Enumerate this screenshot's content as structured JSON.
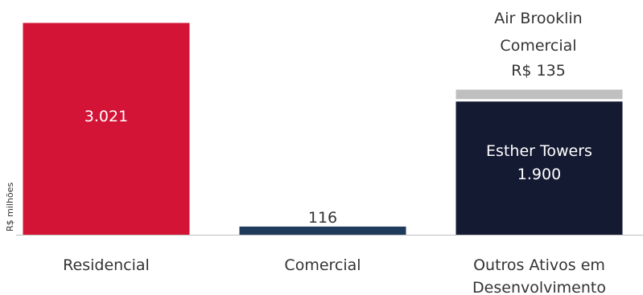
{
  "chart_data": {
    "type": "bar",
    "stacked": true,
    "ylabel": "R$ milhões",
    "categories": [
      "Residencial",
      "Comercial",
      "Outros Ativos em Desenvolvimento"
    ],
    "series": [
      {
        "name": "",
        "values": [
          3021,
          116,
          1900
        ],
        "colors": [
          "#d31437",
          "#1f3a5a",
          "#151a33"
        ]
      },
      {
        "name": "",
        "values": [
          0,
          0,
          135
        ],
        "colors": [
          "#bfbfbf",
          "#bfbfbf",
          "#bfbfbf"
        ]
      }
    ],
    "value_labels": [
      "3.021",
      "116",
      "1.900"
    ],
    "segment_labels": {
      "esther": {
        "line1": "Esther Towers",
        "line2": "1.900"
      },
      "air": {
        "line1": "Air Brooklin",
        "line2": "Comercial",
        "line3": "R$ 135"
      }
    },
    "category_labels": {
      "residencial": "Residencial",
      "comercial": "Comercial",
      "outros_line1": "Outros Ativos em",
      "outros_line2": "Desenvolvimento"
    },
    "grid": false,
    "ylim": [
      0,
      3050
    ]
  }
}
